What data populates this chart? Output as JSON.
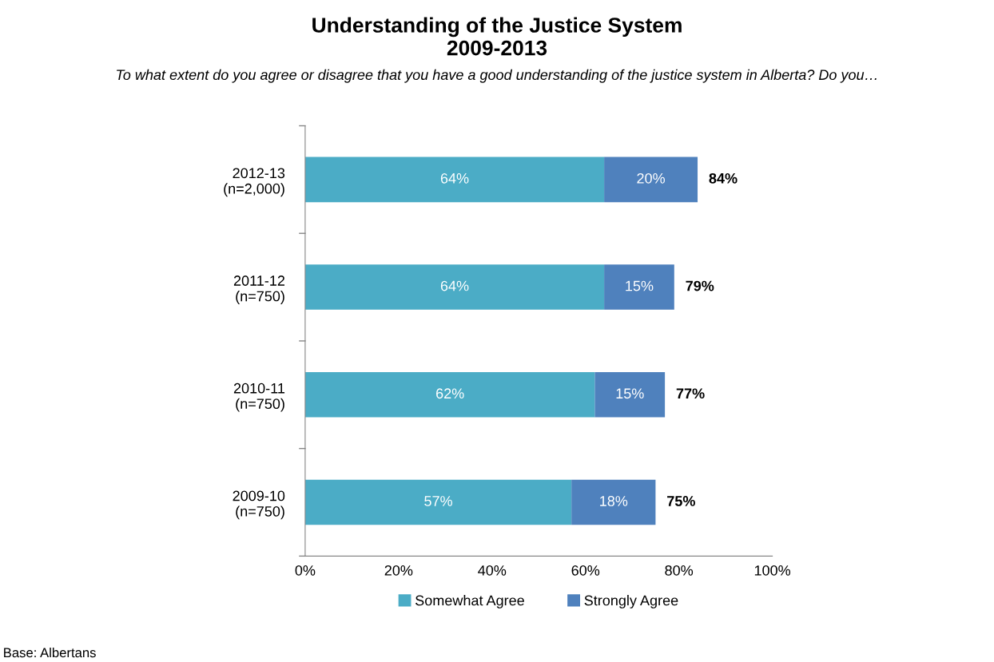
{
  "chart_data": {
    "type": "bar",
    "orientation": "horizontal",
    "stacked": true,
    "title": "Understanding of the Justice System\n2009-2013",
    "subtitle": "To what extent do you agree or disagree that you have a good understanding of the justice system in Alberta? Do you…",
    "categories": [
      "2012-13\n(n=2,000)",
      "2011-12\n(n=750)",
      "2010-11\n(n=750)",
      "2009-10\n(n=750)"
    ],
    "series": [
      {
        "name": "Somewhat Agree",
        "color": "#4bacc6",
        "values": [
          64,
          64,
          62,
          57
        ],
        "value_labels": [
          "64%",
          "64%",
          "62%",
          "57%"
        ]
      },
      {
        "name": "Strongly Agree",
        "color": "#4f81bd",
        "values": [
          20,
          15,
          15,
          18
        ],
        "value_labels": [
          "20%",
          "15%",
          "15%",
          "18%"
        ]
      }
    ],
    "totals": [
      "84%",
      "79%",
      "77%",
      "75%"
    ],
    "xlim": [
      0,
      100
    ],
    "xticks": [
      {
        "value": 0,
        "label": "0%"
      },
      {
        "value": 20,
        "label": "20%"
      },
      {
        "value": 40,
        "label": "40%"
      },
      {
        "value": 60,
        "label": "60%"
      },
      {
        "value": 80,
        "label": "80%"
      },
      {
        "value": 100,
        "label": "100%"
      }
    ],
    "grid": false,
    "legend": "bottom",
    "annotations": [
      "Base: Albertans"
    ]
  }
}
